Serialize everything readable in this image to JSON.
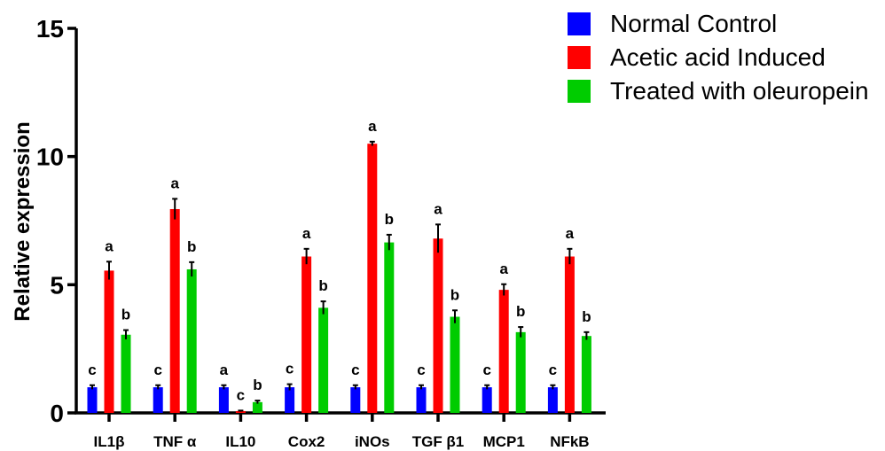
{
  "chart_data": {
    "type": "bar",
    "title": "",
    "xlabel": "",
    "ylabel": "Relative expression",
    "ylim": [
      0,
      15
    ],
    "yticks": [
      0,
      5,
      10,
      15
    ],
    "categories": [
      "IL1β",
      "TNF α",
      "IL10",
      "Cox2",
      "iNOs",
      "TGF β1",
      "MCP1",
      "NFkB"
    ],
    "series": [
      {
        "name": "Normal Control",
        "color": "#0000ff",
        "values": [
          1,
          1,
          1,
          1,
          1,
          1,
          1,
          1
        ],
        "errors": [
          0.08,
          0.08,
          0.08,
          0.12,
          0.08,
          0.08,
          0.08,
          0.08
        ],
        "labels": [
          "c",
          "c",
          "a",
          "c",
          "c",
          "c",
          "c",
          "c"
        ]
      },
      {
        "name": "Acetic acid Induced",
        "color": "#ff0000",
        "values": [
          5.55,
          7.95,
          0.07,
          6.1,
          10.5,
          6.8,
          4.8,
          6.1
        ],
        "errors": [
          0.35,
          0.4,
          0.02,
          0.3,
          0.08,
          0.55,
          0.22,
          0.3
        ],
        "labels": [
          "a",
          "a",
          "c",
          "a",
          "a",
          "a",
          "a",
          "a"
        ]
      },
      {
        "name": "Treated with oleuropein",
        "color": "#00cc00",
        "values": [
          3.05,
          5.6,
          0.42,
          4.1,
          6.65,
          3.75,
          3.15,
          3.0
        ],
        "errors": [
          0.18,
          0.28,
          0.06,
          0.25,
          0.3,
          0.25,
          0.2,
          0.15
        ],
        "labels": [
          "b",
          "b",
          "b",
          "b",
          "b",
          "b",
          "b",
          "b"
        ]
      }
    ],
    "legend_position": "top-right",
    "grid": false
  }
}
